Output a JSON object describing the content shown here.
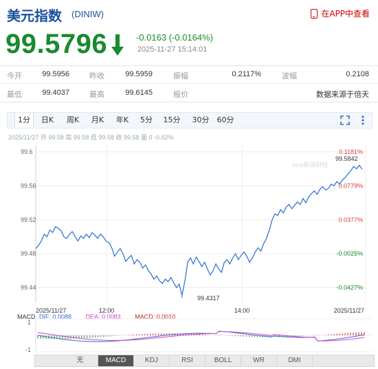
{
  "header": {
    "title": "美元指数",
    "code": "(DINIW)",
    "app_link": "在APP中查看",
    "app_icon": "phone-icon"
  },
  "quote": {
    "price": "99.5796",
    "change": "-0.0163 (-0.0164%)",
    "timestamp": "2025-11-27 15:14:01",
    "direction_icon": "arrow-down-icon",
    "color": "#1a8a2e"
  },
  "stats": {
    "row1": [
      {
        "label": "今开",
        "value": "99.5956"
      },
      {
        "label": "昨收",
        "value": "99.5959"
      },
      {
        "label": "振幅",
        "value": "0.2117%"
      },
      {
        "label": "波幅",
        "value": "0.2108"
      }
    ],
    "row2": [
      {
        "label": "最低",
        "value": "99.4037"
      },
      {
        "label": "最高",
        "value": "99.6145"
      },
      {
        "label": "报价",
        "value": "数据来源于倍天"
      }
    ]
  },
  "period_tabs": [
    "1分",
    "日K",
    "周K",
    "月K",
    "年K",
    "5分",
    "15分",
    "30分",
    "60分"
  ],
  "active_period": "1分",
  "tools": [
    "fullscreen-icon",
    "more-icon"
  ],
  "info_line": "2025/11/27 开 99.58 高 99.58 低 99.58 收 99.58 量 0 -0.02%",
  "chart_data": {
    "type": "line",
    "title": "",
    "xlabel": "",
    "ylabel": "",
    "x_ticks": [
      "2025/11/27",
      "12:00",
      "14:00",
      "2025/11/27"
    ],
    "y_ticks": [
      "99.6",
      "99.56",
      "99.52",
      "99.48",
      "99.44"
    ],
    "pct_ticks": [
      "0.1181%",
      "0.0779%",
      "0.0377%",
      "-0.0025%",
      "-0.0427%"
    ],
    "ylim": [
      99.43,
      99.6
    ],
    "watermark": "sina新浪财经",
    "annotations": [
      {
        "text": "99.5842",
        "role": "last-high-label"
      },
      {
        "text": "99.4317",
        "role": "low-label"
      }
    ],
    "series": [
      {
        "values": [
          99.486,
          99.49,
          99.495,
          99.503,
          99.5,
          99.508,
          99.505,
          99.512,
          99.51,
          99.507,
          99.5,
          99.498,
          99.503,
          99.506,
          99.5,
          99.495,
          99.501,
          99.498,
          99.503,
          99.499,
          99.505,
          99.502,
          99.498,
          99.503,
          99.5,
          99.495,
          99.493,
          99.487,
          99.477,
          99.482,
          99.486,
          99.48,
          99.471,
          99.475,
          99.478,
          99.468,
          99.473,
          99.47,
          99.463,
          99.467,
          99.46,
          99.456,
          99.45,
          99.454,
          99.448,
          99.445,
          99.45,
          99.447,
          99.452,
          99.446,
          99.44,
          99.444,
          99.431,
          99.448,
          99.47,
          99.475,
          99.468,
          99.476,
          99.471,
          99.465,
          99.47,
          99.462,
          99.455,
          99.46,
          99.468,
          99.462,
          99.458,
          99.47,
          99.473,
          99.468,
          99.475,
          99.48,
          99.473,
          99.478,
          99.482,
          99.477,
          99.47,
          99.475,
          99.482,
          99.487,
          99.483,
          99.492,
          99.498,
          99.508,
          99.52,
          99.527,
          99.525,
          99.532,
          99.528,
          99.535,
          99.538,
          99.533,
          99.537,
          99.541,
          99.538,
          99.545,
          99.54,
          99.547,
          99.551,
          99.554,
          99.55,
          99.556,
          99.559,
          99.555,
          99.557,
          99.562,
          99.56,
          99.565,
          99.562,
          99.567,
          99.57,
          99.574,
          99.578,
          99.583,
          99.58,
          99.5842,
          99.5796
        ]
      }
    ]
  },
  "macd": {
    "label": "MACD",
    "dif": "DIF: 0.0088",
    "dea": "DEA: 0.0083",
    "macd": "MACD: 0.0010",
    "y_ticks": [
      "1",
      "-1"
    ],
    "colors": {
      "dif": "#4060d0",
      "dea": "#d040d0",
      "up": "#c82020",
      "down": "#1a8a2e"
    }
  },
  "indicator_tabs": [
    "无",
    "MACD",
    "KDJ",
    "RSI",
    "BOLL",
    "WR",
    "DMI"
  ],
  "active_indicator": "MACD",
  "nav_icons": [
    "triangle-up-icon",
    "triangle-down-icon"
  ]
}
